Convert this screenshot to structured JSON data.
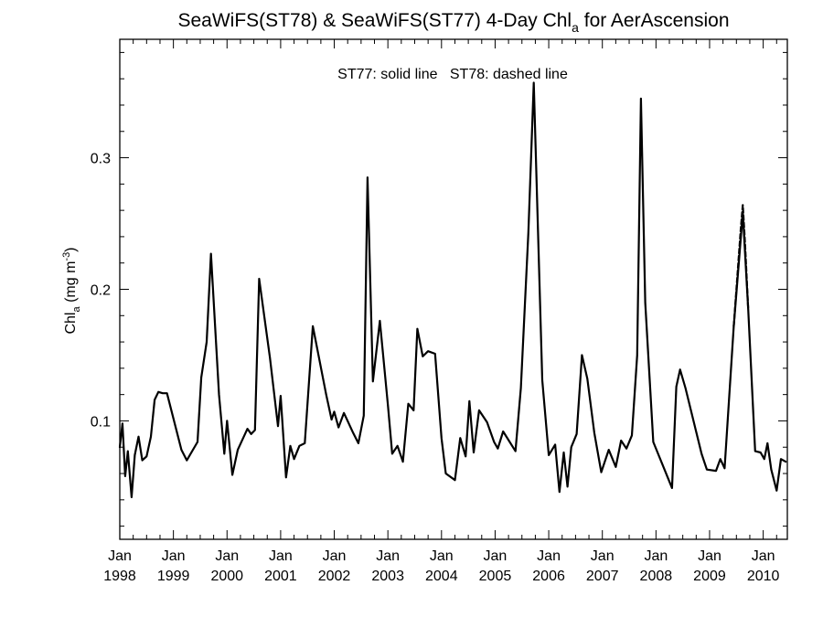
{
  "chart_data": {
    "type": "line",
    "title": {
      "prefix": "SeaWiFS(ST78) & SeaWiFS(ST77) 4-Day Chl",
      "subscript": "a",
      "suffix": " for AerAscension"
    },
    "annotation": "ST77: solid line   ST78: dashed line",
    "ylabel": {
      "base": "Chl",
      "subscript": "a",
      "unit": " (mg m",
      "superscript": "-3",
      "close": ")"
    },
    "ylim": [
      0.01,
      0.39
    ],
    "xlim": [
      1998.0,
      2010.45
    ],
    "yticks": [
      {
        "value": 0.1,
        "label": "0.1"
      },
      {
        "value": 0.2,
        "label": "0.2"
      },
      {
        "value": 0.3,
        "label": "0.3"
      }
    ],
    "xticks": [
      {
        "value": 1998.0,
        "month": "Jan",
        "year": "1998"
      },
      {
        "value": 1999.0,
        "month": "Jan",
        "year": "1999"
      },
      {
        "value": 2000.0,
        "month": "Jan",
        "year": "2000"
      },
      {
        "value": 2001.0,
        "month": "Jan",
        "year": "2001"
      },
      {
        "value": 2002.0,
        "month": "Jan",
        "year": "2002"
      },
      {
        "value": 2003.0,
        "month": "Jan",
        "year": "2003"
      },
      {
        "value": 2004.0,
        "month": "Jan",
        "year": "2004"
      },
      {
        "value": 2005.0,
        "month": "Jan",
        "year": "2005"
      },
      {
        "value": 2006.0,
        "month": "Jan",
        "year": "2006"
      },
      {
        "value": 2007.0,
        "month": "Jan",
        "year": "2007"
      },
      {
        "value": 2008.0,
        "month": "Jan",
        "year": "2008"
      },
      {
        "value": 2009.0,
        "month": "Jan",
        "year": "2009"
      },
      {
        "value": 2010.0,
        "month": "Jan",
        "year": "2010"
      }
    ],
    "series": [
      {
        "name": "ST77",
        "style": "solid",
        "color": "#000000",
        "points": [
          [
            1998.0,
            0.08
          ],
          [
            1998.05,
            0.098
          ],
          [
            1998.1,
            0.058
          ],
          [
            1998.15,
            0.077
          ],
          [
            1998.22,
            0.042
          ],
          [
            1998.28,
            0.074
          ],
          [
            1998.35,
            0.088
          ],
          [
            1998.42,
            0.07
          ],
          [
            1998.5,
            0.073
          ],
          [
            1998.58,
            0.088
          ],
          [
            1998.65,
            0.116
          ],
          [
            1998.72,
            0.122
          ],
          [
            1998.8,
            0.121
          ],
          [
            1998.88,
            0.121
          ],
          [
            1999.15,
            0.078
          ],
          [
            1999.25,
            0.07
          ],
          [
            1999.45,
            0.084
          ],
          [
            1999.52,
            0.133
          ],
          [
            1999.62,
            0.16
          ],
          [
            1999.7,
            0.227
          ],
          [
            1999.85,
            0.12
          ],
          [
            1999.95,
            0.075
          ],
          [
            2000.0,
            0.1
          ],
          [
            2000.1,
            0.059
          ],
          [
            2000.2,
            0.078
          ],
          [
            2000.38,
            0.094
          ],
          [
            2000.45,
            0.09
          ],
          [
            2000.52,
            0.093
          ],
          [
            2000.6,
            0.208
          ],
          [
            2000.8,
            0.148
          ],
          [
            2000.95,
            0.096
          ],
          [
            2001.0,
            0.119
          ],
          [
            2001.1,
            0.057
          ],
          [
            2001.18,
            0.081
          ],
          [
            2001.25,
            0.071
          ],
          [
            2001.35,
            0.081
          ],
          [
            2001.45,
            0.083
          ],
          [
            2001.6,
            0.172
          ],
          [
            2001.85,
            0.12
          ],
          [
            2001.95,
            0.101
          ],
          [
            2002.0,
            0.107
          ],
          [
            2002.08,
            0.095
          ],
          [
            2002.18,
            0.106
          ],
          [
            2002.35,
            0.091
          ],
          [
            2002.45,
            0.083
          ],
          [
            2002.55,
            0.104
          ],
          [
            2002.62,
            0.285
          ],
          [
            2002.72,
            0.13
          ],
          [
            2002.85,
            0.176
          ],
          [
            2003.0,
            0.112
          ],
          [
            2003.08,
            0.075
          ],
          [
            2003.18,
            0.081
          ],
          [
            2003.28,
            0.069
          ],
          [
            2003.38,
            0.113
          ],
          [
            2003.48,
            0.108
          ],
          [
            2003.55,
            0.17
          ],
          [
            2003.65,
            0.149
          ],
          [
            2003.75,
            0.153
          ],
          [
            2003.88,
            0.151
          ],
          [
            2004.0,
            0.087
          ],
          [
            2004.08,
            0.06
          ],
          [
            2004.25,
            0.055
          ],
          [
            2004.35,
            0.087
          ],
          [
            2004.45,
            0.073
          ],
          [
            2004.52,
            0.115
          ],
          [
            2004.6,
            0.076
          ],
          [
            2004.7,
            0.108
          ],
          [
            2004.85,
            0.099
          ],
          [
            2004.98,
            0.084
          ],
          [
            2005.05,
            0.079
          ],
          [
            2005.15,
            0.092
          ],
          [
            2005.38,
            0.077
          ],
          [
            2005.48,
            0.125
          ],
          [
            2005.62,
            0.243
          ],
          [
            2005.72,
            0.357
          ],
          [
            2005.88,
            0.131
          ],
          [
            2006.0,
            0.074
          ],
          [
            2006.12,
            0.082
          ],
          [
            2006.2,
            0.046
          ],
          [
            2006.28,
            0.076
          ],
          [
            2006.35,
            0.05
          ],
          [
            2006.42,
            0.08
          ],
          [
            2006.52,
            0.09
          ],
          [
            2006.62,
            0.15
          ],
          [
            2006.72,
            0.132
          ],
          [
            2006.85,
            0.091
          ],
          [
            2006.98,
            0.061
          ],
          [
            2007.12,
            0.078
          ],
          [
            2007.25,
            0.065
          ],
          [
            2007.35,
            0.085
          ],
          [
            2007.45,
            0.079
          ],
          [
            2007.55,
            0.089
          ],
          [
            2007.65,
            0.15
          ],
          [
            2007.72,
            0.345
          ],
          [
            2007.8,
            0.19
          ],
          [
            2007.95,
            0.084
          ],
          [
            2008.3,
            0.049
          ],
          [
            2008.38,
            0.126
          ],
          [
            2008.45,
            0.139
          ],
          [
            2008.55,
            0.125
          ],
          [
            2008.85,
            0.075
          ],
          [
            2008.95,
            0.063
          ],
          [
            2009.12,
            0.062
          ],
          [
            2009.2,
            0.071
          ],
          [
            2009.28,
            0.064
          ],
          [
            2009.45,
            0.172
          ],
          [
            2009.62,
            0.258
          ],
          [
            2009.72,
            0.185
          ],
          [
            2009.85,
            0.077
          ],
          [
            2009.95,
            0.076
          ],
          [
            2010.02,
            0.071
          ],
          [
            2010.08,
            0.083
          ],
          [
            2010.15,
            0.063
          ],
          [
            2010.25,
            0.047
          ],
          [
            2010.33,
            0.071
          ],
          [
            2010.42,
            0.069
          ]
        ]
      },
      {
        "name": "ST78",
        "style": "dashed",
        "color": "#000000",
        "points": [
          [
            2009.45,
            0.172
          ],
          [
            2009.58,
            0.245
          ],
          [
            2009.62,
            0.264
          ],
          [
            2009.66,
            0.235
          ],
          [
            2009.72,
            0.185
          ]
        ]
      }
    ]
  }
}
